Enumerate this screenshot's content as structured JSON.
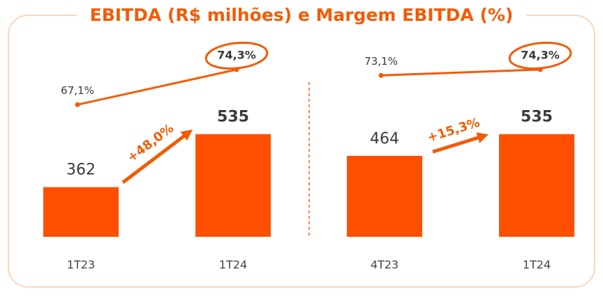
{
  "title": "EBITDA (R$ milhões) e Margem EBITDA (%)",
  "chart_data": [
    {
      "type": "bar",
      "categories": [
        "1T23",
        "1T24"
      ],
      "values": [
        362,
        535
      ],
      "color": "#fe5000",
      "ylim": [
        200,
        600
      ],
      "line": {
        "values": [
          67.1,
          74.3
        ],
        "value_labels": [
          "67,1%",
          "74,3%"
        ],
        "color": "#f25c05"
      },
      "y2lim": [
        60,
        80
      ],
      "annotation": "+48,0%"
    },
    {
      "type": "bar",
      "categories": [
        "4T23",
        "1T24"
      ],
      "values": [
        464,
        535
      ],
      "color": "#fe5000",
      "ylim": [
        200,
        600
      ],
      "line": {
        "values": [
          73.1,
          74.3
        ],
        "value_labels": [
          "73,1%",
          "74,3%"
        ],
        "color": "#f25c05"
      },
      "y2lim": [
        60,
        80
      ],
      "annotation": "+15,3%"
    }
  ]
}
